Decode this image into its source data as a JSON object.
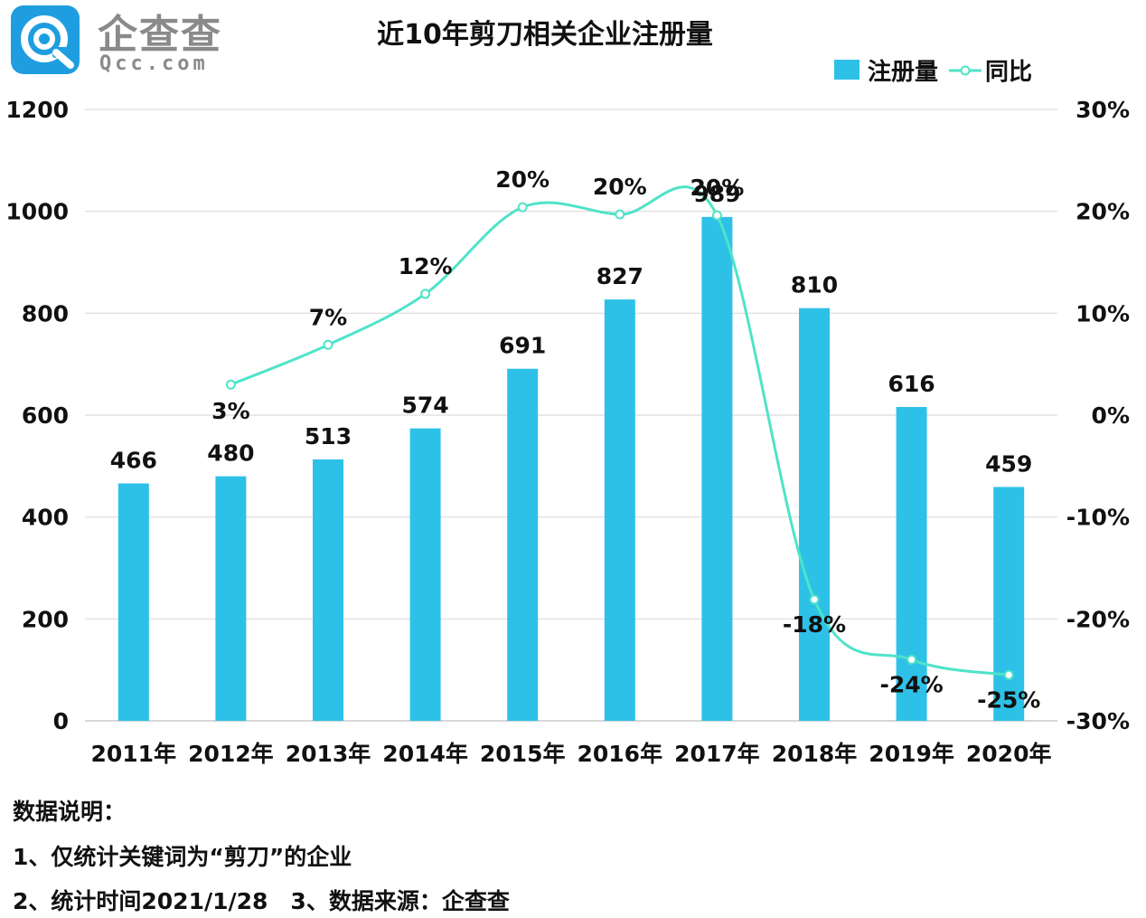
{
  "brand": {
    "name_cn": "企查查",
    "name_en": "Qcc.com",
    "badge_color": "#1e9ee0"
  },
  "chart_data": {
    "type": "bar+line",
    "title": "近10年剪刀相关企业注册量",
    "categories": [
      "2011年",
      "2012年",
      "2013年",
      "2014年",
      "2015年",
      "2016年",
      "2017年",
      "2018年",
      "2019年",
      "2020年"
    ],
    "series": [
      {
        "name": "注册量",
        "type": "bar",
        "axis": "left",
        "color": "#2ec1e8",
        "values": [
          466,
          480,
          513,
          574,
          691,
          827,
          989,
          810,
          616,
          459
        ],
        "labels": [
          "466",
          "480",
          "513",
          "574",
          "691",
          "827",
          "989",
          "810",
          "616",
          "459"
        ]
      },
      {
        "name": "同比",
        "type": "line",
        "axis": "right",
        "color": "#4fe3c9",
        "values": [
          null,
          3.0,
          6.9,
          11.9,
          20.4,
          19.7,
          19.6,
          -18.1,
          -24.0,
          -25.5
        ],
        "labels": [
          "",
          "3%",
          "7%",
          "12%",
          "20%",
          "20%",
          "20%",
          "-18%",
          "-24%",
          "-25%"
        ]
      }
    ],
    "y_left": {
      "min": 0,
      "max": 1200,
      "ticks": [
        "0",
        "200",
        "400",
        "600",
        "800",
        "1000",
        "1200"
      ]
    },
    "y_right": {
      "min": -30,
      "max": 30,
      "ticks": [
        "-30%",
        "-20%",
        "-10%",
        "0%",
        "10%",
        "20%",
        "30%"
      ]
    },
    "grid": true,
    "legend": "top-right"
  },
  "notes": [
    "数据说明：",
    "1、仅统计关键词为“剪刀”的企业",
    "2、统计时间2021/1/28　3、数据来源：企查查"
  ]
}
